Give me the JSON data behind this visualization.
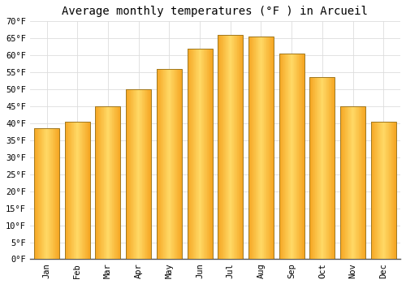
{
  "title": "Average monthly temperatures (°F ) in Arcueil",
  "months": [
    "Jan",
    "Feb",
    "Mar",
    "Apr",
    "May",
    "Jun",
    "Jul",
    "Aug",
    "Sep",
    "Oct",
    "Nov",
    "Dec"
  ],
  "values": [
    38.5,
    40.5,
    45.0,
    50.0,
    56.0,
    62.0,
    66.0,
    65.5,
    60.5,
    53.5,
    45.0,
    40.5
  ],
  "bar_color_left": "#F5A623",
  "bar_color_center": "#FFD966",
  "bar_color_right": "#F5A623",
  "bar_edge_color": "#A07820",
  "ylim": [
    0,
    70
  ],
  "yticks": [
    0,
    5,
    10,
    15,
    20,
    25,
    30,
    35,
    40,
    45,
    50,
    55,
    60,
    65,
    70
  ],
  "ytick_labels": [
    "0°F",
    "5°F",
    "10°F",
    "15°F",
    "20°F",
    "25°F",
    "30°F",
    "35°F",
    "40°F",
    "45°F",
    "50°F",
    "55°F",
    "60°F",
    "65°F",
    "70°F"
  ],
  "background_color": "#FFFFFF",
  "grid_color": "#DDDDDD",
  "title_fontsize": 10,
  "tick_fontsize": 7.5,
  "font_family": "monospace",
  "bar_width": 0.82
}
